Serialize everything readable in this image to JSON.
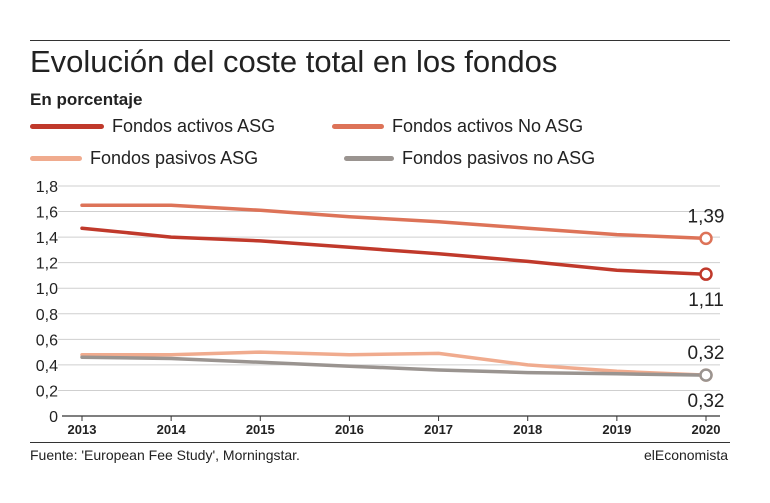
{
  "header": {
    "title": "Evolución del coste total en los fondos",
    "subtitle": "En porcentaje"
  },
  "footer": {
    "source": "Fuente:  'European Fee Study', Morningstar.",
    "brand": "elEconomista"
  },
  "chart_data": {
    "type": "line",
    "x": [
      "2013",
      "2014",
      "2015",
      "2016",
      "2017",
      "2018",
      "2019",
      "2020"
    ],
    "y_ticks": [
      "0",
      "0,2",
      "0,4",
      "0,6",
      "0,8",
      "1,0",
      "1,2",
      "1,4",
      "1,6",
      "1,8"
    ],
    "ylim": [
      0,
      1.8
    ],
    "grid": true,
    "legend_position": "top",
    "series": [
      {
        "name": "Fondos activos ASG",
        "color": "#c0392b",
        "values": [
          1.47,
          1.4,
          1.37,
          1.32,
          1.27,
          1.21,
          1.14,
          1.11
        ]
      },
      {
        "name": "Fondos activos No ASG",
        "color": "#dd7358",
        "values": [
          1.65,
          1.65,
          1.61,
          1.56,
          1.52,
          1.47,
          1.42,
          1.39
        ]
      },
      {
        "name": "Fondos pasivos ASG",
        "color": "#f0ab8e",
        "values": [
          0.48,
          0.48,
          0.5,
          0.48,
          0.49,
          0.4,
          0.35,
          0.32
        ]
      },
      {
        "name": "Fondos pasivos no ASG",
        "color": "#9a9490",
        "values": [
          0.46,
          0.45,
          0.42,
          0.39,
          0.36,
          0.34,
          0.33,
          0.32
        ]
      }
    ],
    "annotations": [
      {
        "series": 1,
        "label": "1,39",
        "position": "above"
      },
      {
        "series": 0,
        "label": "1,11",
        "position": "below"
      },
      {
        "series": 2,
        "label": "0,32",
        "position": "above"
      },
      {
        "series": 3,
        "label": "0,32",
        "position": "below"
      }
    ]
  }
}
